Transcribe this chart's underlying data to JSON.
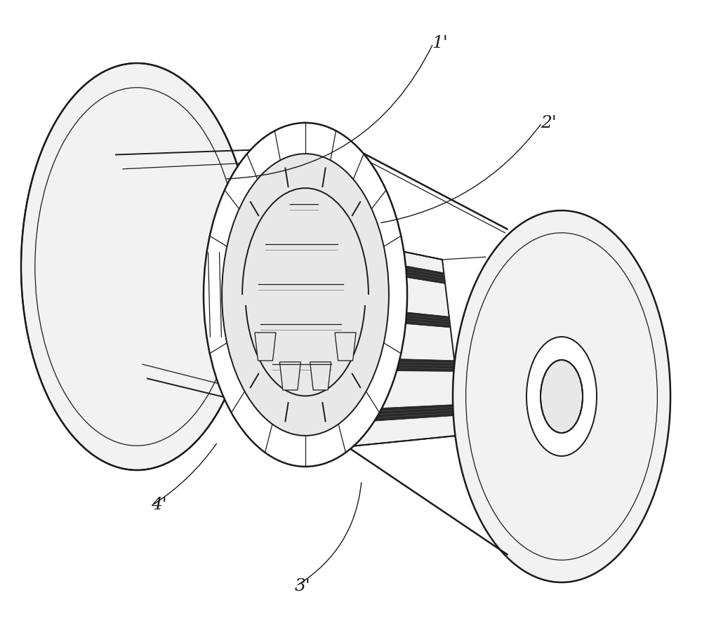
{
  "background_color": "#ffffff",
  "line_color": "#1a1a1a",
  "gray_fill": "#e8e8e8",
  "light_fill": "#f2f2f2",
  "dark_band": "#2a2a2a",
  "mid_band": "#888888",
  "figsize": [
    10.0,
    9.15
  ],
  "dpi": 100,
  "lw_main": 1.4,
  "lw_thin": 0.9,
  "lw_thick": 1.8,
  "label_fontsize": 18
}
